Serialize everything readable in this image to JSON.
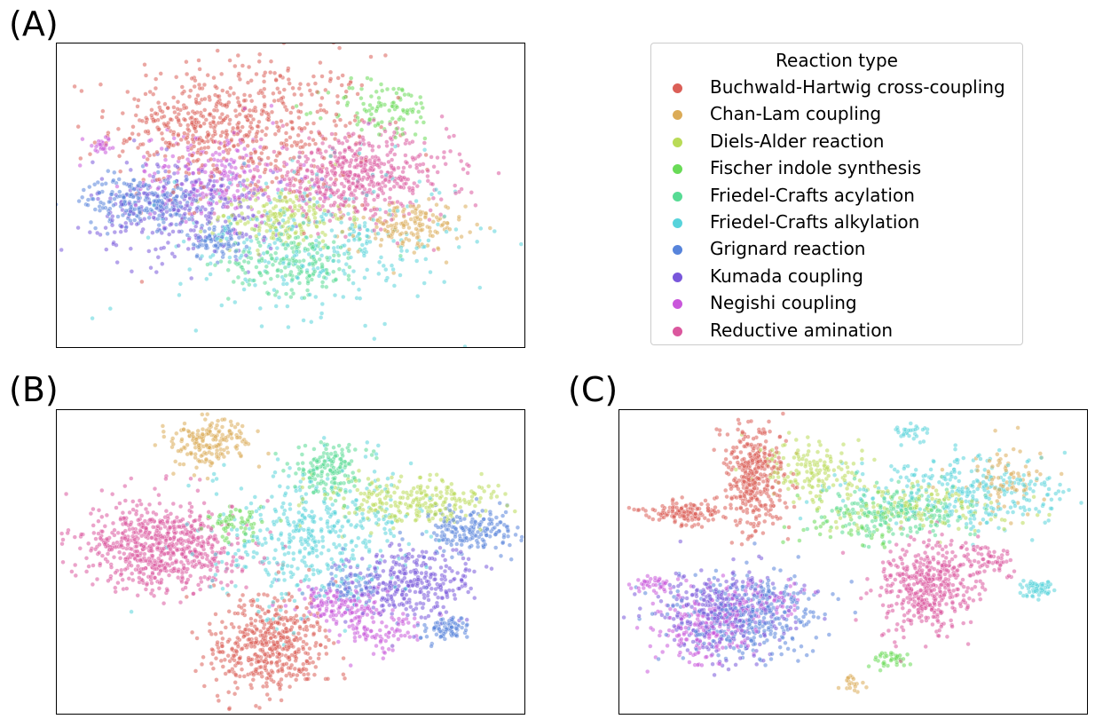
{
  "panel_labels": {
    "a": "(A)",
    "b": "(B)",
    "c": "(C)"
  },
  "legend": {
    "title": "Reaction type",
    "items": [
      {
        "label": "Buchwald-Hartwig cross-coupling",
        "color": "#db5f57"
      },
      {
        "label": "Chan-Lam coupling",
        "color": "#dbab57"
      },
      {
        "label": "Diels-Alder reaction",
        "color": "#b9db57"
      },
      {
        "label": "Fischer indole synthesis",
        "color": "#69db57"
      },
      {
        "label": "Friedel-Crafts acylation",
        "color": "#57db94"
      },
      {
        "label": "Friedel-Crafts alkylation",
        "color": "#57d3db"
      },
      {
        "label": "Grignard reaction",
        "color": "#5784db"
      },
      {
        "label": "Kumada coupling",
        "color": "#7957db"
      },
      {
        "label": "Negishi coupling",
        "color": "#c957db"
      },
      {
        "label": "Reductive amination",
        "color": "#db579e"
      }
    ]
  },
  "chart_data": [
    {
      "type": "scatter",
      "panel": "(A)",
      "title": "",
      "xlabel": "",
      "ylabel": "",
      "xlim": [
        0,
        100
      ],
      "ylim": [
        0,
        100
      ],
      "ticks": "none",
      "grid": false,
      "series_clusters": [
        {
          "series": "Buchwald-Hartwig cross-coupling",
          "clusters": [
            {
              "cx": 40,
              "cy": 72,
              "sx": 14,
              "sy": 12,
              "n": 500
            },
            {
              "cx": 30,
              "cy": 75,
              "sx": 6,
              "sy": 5,
              "n": 120
            }
          ]
        },
        {
          "series": "Chan-Lam coupling",
          "clusters": [
            {
              "cx": 75,
              "cy": 40,
              "sx": 6,
              "sy": 4,
              "n": 150
            }
          ]
        },
        {
          "series": "Diels-Alder reaction",
          "clusters": [
            {
              "cx": 48,
              "cy": 43,
              "sx": 7,
              "sy": 5,
              "n": 200
            }
          ]
        },
        {
          "series": "Fischer indole synthesis",
          "clusters": [
            {
              "cx": 70,
              "cy": 78,
              "sx": 6,
              "sy": 5,
              "n": 100
            }
          ]
        },
        {
          "series": "Friedel-Crafts acylation",
          "clusters": [
            {
              "cx": 51,
              "cy": 28,
              "sx": 7,
              "sy": 5,
              "n": 180
            }
          ]
        },
        {
          "series": "Friedel-Crafts alkylation",
          "clusters": [
            {
              "cx": 56,
              "cy": 35,
              "sx": 15,
              "sy": 12,
              "n": 320
            }
          ]
        },
        {
          "series": "Grignard reaction",
          "clusters": [
            {
              "cx": 18,
              "cy": 48,
              "sx": 6,
              "sy": 4,
              "n": 220
            },
            {
              "cx": 34,
              "cy": 35,
              "sx": 3,
              "sy": 3,
              "n": 80
            }
          ]
        },
        {
          "series": "Kumada coupling",
          "clusters": [
            {
              "cx": 28,
              "cy": 46,
              "sx": 10,
              "sy": 8,
              "n": 300
            }
          ]
        },
        {
          "series": "Negishi coupling",
          "clusters": [
            {
              "cx": 34,
              "cy": 56,
              "sx": 9,
              "sy": 8,
              "n": 220
            },
            {
              "cx": 10,
              "cy": 66,
              "sx": 2,
              "sy": 1.5,
              "n": 25
            }
          ]
        },
        {
          "series": "Reductive amination",
          "clusters": [
            {
              "cx": 64,
              "cy": 56,
              "sx": 10,
              "sy": 7,
              "n": 520
            }
          ]
        }
      ]
    },
    {
      "type": "scatter",
      "panel": "(B)",
      "title": "",
      "xlabel": "",
      "ylabel": "",
      "xlim": [
        0,
        100
      ],
      "ylim": [
        0,
        100
      ],
      "ticks": "none",
      "grid": false,
      "series_clusters": [
        {
          "series": "Buchwald-Hartwig cross-coupling",
          "clusters": [
            {
              "cx": 45,
              "cy": 23,
              "sx": 6,
              "sy": 8,
              "n": 500
            }
          ]
        },
        {
          "series": "Chan-Lam coupling",
          "clusters": [
            {
              "cx": 33,
              "cy": 89,
              "sx": 4,
              "sy": 4,
              "n": 180
            }
          ]
        },
        {
          "series": "Diels-Alder reaction",
          "clusters": [
            {
              "cx": 77,
              "cy": 70,
              "sx": 9,
              "sy": 4,
              "n": 250
            }
          ]
        },
        {
          "series": "Fischer indole synthesis",
          "clusters": [
            {
              "cx": 38,
              "cy": 63,
              "sx": 3,
              "sy": 3,
              "n": 60
            }
          ]
        },
        {
          "series": "Friedel-Crafts acylation",
          "clusters": [
            {
              "cx": 58,
              "cy": 80,
              "sx": 4,
              "sy": 4,
              "n": 160
            }
          ]
        },
        {
          "series": "Friedel-Crafts alkylation",
          "clusters": [
            {
              "cx": 55,
              "cy": 58,
              "sx": 11,
              "sy": 11,
              "n": 450
            }
          ]
        },
        {
          "series": "Grignard reaction",
          "clusters": [
            {
              "cx": 89,
              "cy": 60,
              "sx": 5,
              "sy": 4,
              "n": 180
            },
            {
              "cx": 83,
              "cy": 28,
              "sx": 3,
              "sy": 2,
              "n": 80
            },
            {
              "cx": 63,
              "cy": 42,
              "sx": 3,
              "sy": 3,
              "n": 60
            }
          ]
        },
        {
          "series": "Kumada coupling",
          "clusters": [
            {
              "cx": 75,
              "cy": 43,
              "sx": 7,
              "sy": 6,
              "n": 320
            }
          ]
        },
        {
          "series": "Negishi coupling",
          "clusters": [
            {
              "cx": 60,
              "cy": 37,
              "sx": 5,
              "sy": 3,
              "n": 130
            },
            {
              "cx": 68,
              "cy": 28,
              "sx": 5,
              "sy": 4,
              "n": 100
            }
          ]
        },
        {
          "series": "Reductive amination",
          "clusters": [
            {
              "cx": 22,
              "cy": 55,
              "sx": 8,
              "sy": 7,
              "n": 700
            }
          ]
        }
      ]
    },
    {
      "type": "scatter",
      "panel": "(C)",
      "title": "",
      "xlabel": "",
      "ylabel": "",
      "xlim": [
        0,
        100
      ],
      "ylim": [
        0,
        100
      ],
      "ticks": "none",
      "grid": false,
      "series_clusters": [
        {
          "series": "Buchwald-Hartwig cross-coupling",
          "clusters": [
            {
              "cx": 29,
              "cy": 78,
              "sx": 3,
              "sy": 9,
              "n": 380
            },
            {
              "cx": 14,
              "cy": 66,
              "sx": 4,
              "sy": 2,
              "n": 140
            }
          ]
        },
        {
          "series": "Chan-Lam coupling",
          "clusters": [
            {
              "cx": 82,
              "cy": 77,
              "sx": 5,
              "sy": 6,
              "n": 80
            },
            {
              "cx": 50,
              "cy": 10,
              "sx": 1.5,
              "sy": 1.5,
              "n": 20
            }
          ]
        },
        {
          "series": "Diels-Alder reaction",
          "clusters": [
            {
              "cx": 41,
              "cy": 80,
              "sx": 6,
              "sy": 5,
              "n": 150
            },
            {
              "cx": 64,
              "cy": 68,
              "sx": 9,
              "sy": 4,
              "n": 140
            }
          ]
        },
        {
          "series": "Fischer indole synthesis",
          "clusters": [
            {
              "cx": 58,
              "cy": 18,
              "sx": 2,
              "sy": 1.5,
              "n": 40
            },
            {
              "cx": 50,
              "cy": 62,
              "sx": 6,
              "sy": 5,
              "n": 50
            }
          ]
        },
        {
          "series": "Friedel-Crafts acylation",
          "clusters": [
            {
              "cx": 60,
              "cy": 66,
              "sx": 8,
              "sy": 4,
              "n": 200
            }
          ]
        },
        {
          "series": "Friedel-Crafts alkylation",
          "clusters": [
            {
              "cx": 74,
              "cy": 73,
              "sx": 12,
              "sy": 6,
              "n": 300
            },
            {
              "cx": 89,
              "cy": 41,
              "sx": 2,
              "sy": 1.5,
              "n": 60
            },
            {
              "cx": 62,
              "cy": 92,
              "sx": 2,
              "sy": 1.5,
              "n": 30
            }
          ]
        },
        {
          "series": "Grignard reaction",
          "clusters": [
            {
              "cx": 27,
              "cy": 32,
              "sx": 8,
              "sy": 7,
              "n": 350
            }
          ]
        },
        {
          "series": "Kumada coupling",
          "clusters": [
            {
              "cx": 22,
              "cy": 33,
              "sx": 7,
              "sy": 7,
              "n": 300
            }
          ]
        },
        {
          "series": "Negishi coupling",
          "clusters": [
            {
              "cx": 18,
              "cy": 28,
              "sx": 5,
              "sy": 6,
              "n": 180
            },
            {
              "cx": 7,
              "cy": 43,
              "sx": 2,
              "sy": 1.5,
              "n": 40
            },
            {
              "cx": 30,
              "cy": 37,
              "sx": 5,
              "sy": 4,
              "n": 80
            }
          ]
        },
        {
          "series": "Reductive amination",
          "clusters": [
            {
              "cx": 65,
              "cy": 41,
              "sx": 5,
              "sy": 8,
              "n": 420
            },
            {
              "cx": 77,
              "cy": 51,
              "sx": 4,
              "sy": 3,
              "n": 80
            }
          ]
        }
      ]
    }
  ]
}
